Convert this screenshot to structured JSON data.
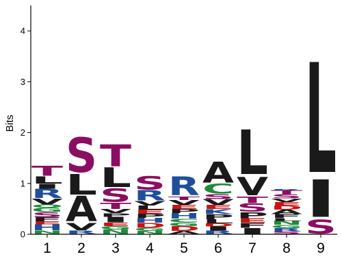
{
  "chart_data": {
    "type": "sequence-logo",
    "ylabel": "Bits",
    "xlabel": "",
    "ylim": [
      0,
      4.5
    ],
    "yticks": [
      "0",
      "1",
      "2",
      "3",
      "4"
    ],
    "positions": [
      "1",
      "2",
      "3",
      "4",
      "5",
      "6",
      "7",
      "8",
      "9"
    ],
    "colors": {
      "T": "#8b0e62",
      "S": "#8b0e62",
      "G": "#1e8c3a",
      "C": "#1e8c3a",
      "Q": "#1e8c3a",
      "N": "#1e8c3a",
      "R": "#1f4e9b",
      "H": "#1f4e9b",
      "K": "#1f4e9b",
      "D": "#cc1111",
      "E": "#cc1111",
      "L": "#1a1a1a",
      "I": "#1a1a1a",
      "V": "#1a1a1a",
      "A": "#1a1a1a",
      "P": "#1a1a1a",
      "F": "#1a1a1a",
      "M": "#1a1a1a",
      "Y": "#1a1a1a",
      "W": "#1a1a1a"
    },
    "columns": [
      {
        "position": "1",
        "letters": [
          {
            "letter": "N",
            "height": 0.07
          },
          {
            "letter": "H",
            "height": 0.12
          },
          {
            "letter": "E",
            "height": 0.06
          },
          {
            "letter": "F",
            "height": 0.08
          },
          {
            "letter": "S",
            "height": 0.1
          },
          {
            "letter": "G",
            "height": 0.09
          },
          {
            "letter": "Q",
            "height": 0.06
          },
          {
            "letter": "V",
            "height": 0.12
          },
          {
            "letter": "R",
            "height": 0.19
          },
          {
            "letter": "I",
            "height": 0.1
          },
          {
            "letter": "L",
            "height": 0.15
          },
          {
            "letter": "T",
            "height": 0.2
          }
        ]
      },
      {
        "position": "2",
        "letters": [
          {
            "letter": "R",
            "height": 0.07
          },
          {
            "letter": "V",
            "height": 0.15
          },
          {
            "letter": "A",
            "height": 0.53
          },
          {
            "letter": "L",
            "height": 0.43
          },
          {
            "letter": "S",
            "height": 0.72
          }
        ]
      },
      {
        "position": "3",
        "letters": [
          {
            "letter": "N",
            "height": 0.09
          },
          {
            "letter": "G",
            "height": 0.07
          },
          {
            "letter": "E",
            "height": 0.07
          },
          {
            "letter": "I",
            "height": 0.11
          },
          {
            "letter": "P",
            "height": 0.07
          },
          {
            "letter": "V",
            "height": 0.08
          },
          {
            "letter": "T",
            "height": 0.13
          },
          {
            "letter": "S",
            "height": 0.28
          },
          {
            "letter": "L",
            "height": 0.41
          },
          {
            "letter": "T",
            "height": 0.45
          }
        ]
      },
      {
        "position": "4",
        "letters": [
          {
            "letter": "N",
            "height": 0.06
          },
          {
            "letter": "G",
            "height": 0.06
          },
          {
            "letter": "D",
            "height": 0.1
          },
          {
            "letter": "H",
            "height": 0.1
          },
          {
            "letter": "P",
            "height": 0.08
          },
          {
            "letter": "E",
            "height": 0.08
          },
          {
            "letter": "L",
            "height": 0.08
          },
          {
            "letter": "V",
            "height": 0.09
          },
          {
            "letter": "R",
            "height": 0.21
          },
          {
            "letter": "S",
            "height": 0.28
          }
        ]
      },
      {
        "position": "5",
        "letters": [
          {
            "letter": "A",
            "height": 0.06
          },
          {
            "letter": "D",
            "height": 0.1
          },
          {
            "letter": "G",
            "height": 0.07
          },
          {
            "letter": "C",
            "height": 0.07
          },
          {
            "letter": "H",
            "height": 0.11
          },
          {
            "letter": "P",
            "height": 0.08
          },
          {
            "letter": "E",
            "height": 0.08
          },
          {
            "letter": "V",
            "height": 0.1
          },
          {
            "letter": "T",
            "height": 0.07
          },
          {
            "letter": "R",
            "height": 0.39
          }
        ]
      },
      {
        "position": "6",
        "letters": [
          {
            "letter": "R",
            "height": 0.07
          },
          {
            "letter": "I",
            "height": 0.08
          },
          {
            "letter": "D",
            "height": 0.06
          },
          {
            "letter": "L",
            "height": 0.08
          },
          {
            "letter": "P",
            "height": 0.1
          },
          {
            "letter": "K",
            "height": 0.1
          },
          {
            "letter": "E",
            "height": 0.08
          },
          {
            "letter": "V",
            "height": 0.12
          },
          {
            "letter": "S",
            "height": 0.1
          },
          {
            "letter": "C",
            "height": 0.2
          },
          {
            "letter": "A",
            "height": 0.44
          }
        ]
      },
      {
        "position": "7",
        "letters": [
          {
            "letter": "I",
            "height": 0.12
          },
          {
            "letter": "F",
            "height": 0.1
          },
          {
            "letter": "E",
            "height": 0.09
          },
          {
            "letter": "P",
            "height": 0.12
          },
          {
            "letter": "S",
            "height": 0.18
          },
          {
            "letter": "T",
            "height": 0.13
          },
          {
            "letter": "V",
            "height": 0.38
          },
          {
            "letter": "L",
            "height": 0.93
          }
        ]
      },
      {
        "position": "8",
        "letters": [
          {
            "letter": "S",
            "height": 0.05
          },
          {
            "letter": "R",
            "height": 0.07
          },
          {
            "letter": "G",
            "height": 0.06
          },
          {
            "letter": "N",
            "height": 0.08
          },
          {
            "letter": "L",
            "height": 0.05
          },
          {
            "letter": "F",
            "height": 0.08
          },
          {
            "letter": "A",
            "height": 0.09
          },
          {
            "letter": "D",
            "height": 0.08
          },
          {
            "letter": "E",
            "height": 0.07
          },
          {
            "letter": "V",
            "height": 0.07
          },
          {
            "letter": "S",
            "height": 0.08
          },
          {
            "letter": "T",
            "height": 0.08
          },
          {
            "letter": "R",
            "height": 0.03
          }
        ]
      },
      {
        "position": "9",
        "letters": [
          {
            "letter": "S",
            "height": 0.29
          },
          {
            "letter": "I",
            "height": 0.78
          },
          {
            "letter": "L",
            "height": 2.29
          }
        ]
      }
    ]
  }
}
